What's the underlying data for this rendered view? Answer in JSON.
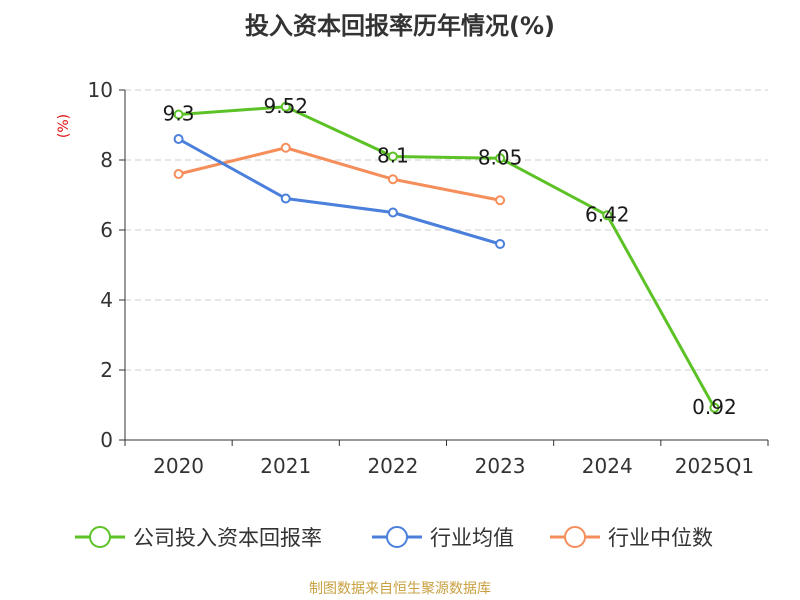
{
  "chart_data": {
    "type": "line",
    "title": "投入资本回报率历年情况(%)",
    "ylabel": "(%)",
    "xlabel": "",
    "categories": [
      "2020",
      "2021",
      "2022",
      "2023",
      "2024",
      "2025Q1"
    ],
    "yticks": [
      "0",
      "2",
      "4",
      "6",
      "8",
      "10"
    ],
    "ylim": [
      0,
      10
    ],
    "grid": "horizontal dashed",
    "legend_position": "bottom",
    "series": [
      {
        "name": "公司投入资本回报率",
        "color": "#5cc226",
        "values": [
          9.3,
          9.52,
          8.1,
          8.05,
          6.42,
          0.92
        ],
        "labels": [
          "9.3",
          "9.52",
          "8.1",
          "8.05",
          "6.42",
          "0.92"
        ],
        "show_labels": true
      },
      {
        "name": "行业均值",
        "color": "#4a7fdc",
        "values": [
          8.6,
          6.9,
          6.5,
          5.6,
          null,
          null
        ],
        "show_labels": false
      },
      {
        "name": "行业中位数",
        "color": "#f58e5a",
        "values": [
          7.6,
          8.35,
          7.45,
          6.85,
          null,
          null
        ],
        "show_labels": false
      }
    ]
  },
  "footer": {
    "source": "制图数据来自恒生聚源数据库"
  },
  "colors": {
    "ylabel": "#e01010",
    "source": "#c8a040"
  }
}
